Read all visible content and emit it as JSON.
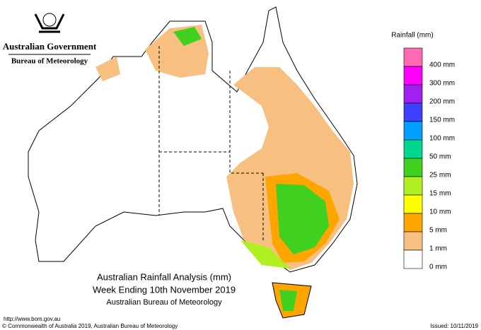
{
  "header": {
    "agency": "Australian Government",
    "bureau": "Bureau of Meteorology"
  },
  "legend": {
    "title": "Rainfall (mm)",
    "items": [
      {
        "label": "400 mm",
        "color": "#ff69b4"
      },
      {
        "label": "300 mm",
        "color": "#ff00ff"
      },
      {
        "label": "200 mm",
        "color": "#a020f0"
      },
      {
        "label": "150 mm",
        "color": "#4040ff"
      },
      {
        "label": "100 mm",
        "color": "#00a0ff"
      },
      {
        "label": "50 mm",
        "color": "#00d890"
      },
      {
        "label": "25 mm",
        "color": "#40d020"
      },
      {
        "label": "15 mm",
        "color": "#b0f020"
      },
      {
        "label": "10 mm",
        "color": "#ffff00"
      },
      {
        "label": "5 mm",
        "color": "#ffa500"
      },
      {
        "label": "1 mm",
        "color": "#f8c080"
      },
      {
        "label": "0 mm",
        "color": "#ffffff"
      }
    ]
  },
  "map": {
    "title": "Australian Rainfall Analysis (mm)",
    "subtitle": "Week Ending 10th November 2019",
    "source": "Australian Bureau of Meteorology"
  },
  "footer": {
    "url": "http://www.bom.gov.au",
    "copyright": "© Commonwealth of Australia 2019, Australian Bureau of Meteorology",
    "issued": "Issued: 10/11/2019"
  }
}
